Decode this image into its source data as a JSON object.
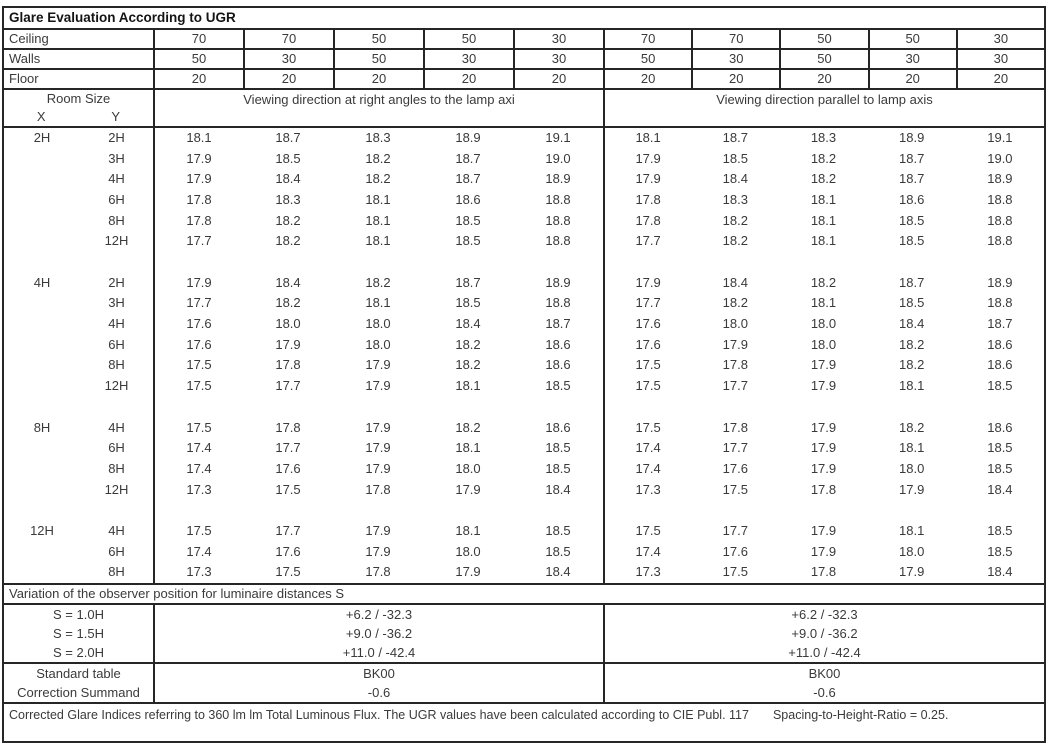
{
  "title": "Glare Evaluation According to UGR",
  "surface": {
    "rows": [
      {
        "label": "Ceiling",
        "values": [
          "70",
          "70",
          "50",
          "50",
          "30",
          "70",
          "70",
          "50",
          "50",
          "30"
        ]
      },
      {
        "label": "Walls",
        "values": [
          "50",
          "30",
          "50",
          "30",
          "30",
          "50",
          "30",
          "50",
          "30",
          "30"
        ]
      },
      {
        "label": "Floor",
        "values": [
          "20",
          "20",
          "20",
          "20",
          "20",
          "20",
          "20",
          "20",
          "20",
          "20"
        ]
      }
    ]
  },
  "header": {
    "room_size": "Room Size",
    "x_label": "X",
    "y_label": "Y",
    "left_direction": "Viewing direction at right angles to the lamp axi",
    "right_direction": "Viewing direction parallel to lamp axis"
  },
  "body": {
    "rows": [
      {
        "x": "2H",
        "y": "2H",
        "left": [
          "18.1",
          "18.7",
          "18.3",
          "18.9",
          "19.1"
        ],
        "right": [
          "18.1",
          "18.7",
          "18.3",
          "18.9",
          "19.1"
        ]
      },
      {
        "x": "",
        "y": "3H",
        "left": [
          "17.9",
          "18.5",
          "18.2",
          "18.7",
          "19.0"
        ],
        "right": [
          "17.9",
          "18.5",
          "18.2",
          "18.7",
          "19.0"
        ]
      },
      {
        "x": "",
        "y": "4H",
        "left": [
          "17.9",
          "18.4",
          "18.2",
          "18.7",
          "18.9"
        ],
        "right": [
          "17.9",
          "18.4",
          "18.2",
          "18.7",
          "18.9"
        ]
      },
      {
        "x": "",
        "y": "6H",
        "left": [
          "17.8",
          "18.3",
          "18.1",
          "18.6",
          "18.8"
        ],
        "right": [
          "17.8",
          "18.3",
          "18.1",
          "18.6",
          "18.8"
        ]
      },
      {
        "x": "",
        "y": "8H",
        "left": [
          "17.8",
          "18.2",
          "18.1",
          "18.5",
          "18.8"
        ],
        "right": [
          "17.8",
          "18.2",
          "18.1",
          "18.5",
          "18.8"
        ]
      },
      {
        "x": "",
        "y": "12H",
        "left": [
          "17.7",
          "18.2",
          "18.1",
          "18.5",
          "18.8"
        ],
        "right": [
          "17.7",
          "18.2",
          "18.1",
          "18.5",
          "18.8"
        ]
      },
      {
        "spacer": true
      },
      {
        "x": "4H",
        "y": "2H",
        "left": [
          "17.9",
          "18.4",
          "18.2",
          "18.7",
          "18.9"
        ],
        "right": [
          "17.9",
          "18.4",
          "18.2",
          "18.7",
          "18.9"
        ]
      },
      {
        "x": "",
        "y": "3H",
        "left": [
          "17.7",
          "18.2",
          "18.1",
          "18.5",
          "18.8"
        ],
        "right": [
          "17.7",
          "18.2",
          "18.1",
          "18.5",
          "18.8"
        ]
      },
      {
        "x": "",
        "y": "4H",
        "left": [
          "17.6",
          "18.0",
          "18.0",
          "18.4",
          "18.7"
        ],
        "right": [
          "17.6",
          "18.0",
          "18.0",
          "18.4",
          "18.7"
        ]
      },
      {
        "x": "",
        "y": "6H",
        "left": [
          "17.6",
          "17.9",
          "18.0",
          "18.2",
          "18.6"
        ],
        "right": [
          "17.6",
          "17.9",
          "18.0",
          "18.2",
          "18.6"
        ]
      },
      {
        "x": "",
        "y": "8H",
        "left": [
          "17.5",
          "17.8",
          "17.9",
          "18.2",
          "18.6"
        ],
        "right": [
          "17.5",
          "17.8",
          "17.9",
          "18.2",
          "18.6"
        ]
      },
      {
        "x": "",
        "y": "12H",
        "left": [
          "17.5",
          "17.7",
          "17.9",
          "18.1",
          "18.5"
        ],
        "right": [
          "17.5",
          "17.7",
          "17.9",
          "18.1",
          "18.5"
        ]
      },
      {
        "spacer": true
      },
      {
        "x": "8H",
        "y": "4H",
        "left": [
          "17.5",
          "17.8",
          "17.9",
          "18.2",
          "18.6"
        ],
        "right": [
          "17.5",
          "17.8",
          "17.9",
          "18.2",
          "18.6"
        ]
      },
      {
        "x": "",
        "y": "6H",
        "left": [
          "17.4",
          "17.7",
          "17.9",
          "18.1",
          "18.5"
        ],
        "right": [
          "17.4",
          "17.7",
          "17.9",
          "18.1",
          "18.5"
        ]
      },
      {
        "x": "",
        "y": "8H",
        "left": [
          "17.4",
          "17.6",
          "17.9",
          "18.0",
          "18.5"
        ],
        "right": [
          "17.4",
          "17.6",
          "17.9",
          "18.0",
          "18.5"
        ]
      },
      {
        "x": "",
        "y": "12H",
        "left": [
          "17.3",
          "17.5",
          "17.8",
          "17.9",
          "18.4"
        ],
        "right": [
          "17.3",
          "17.5",
          "17.8",
          "17.9",
          "18.4"
        ]
      },
      {
        "spacer": true
      },
      {
        "x": "12H",
        "y": "4H",
        "left": [
          "17.5",
          "17.7",
          "17.9",
          "18.1",
          "18.5"
        ],
        "right": [
          "17.5",
          "17.7",
          "17.9",
          "18.1",
          "18.5"
        ]
      },
      {
        "x": "",
        "y": "6H",
        "left": [
          "17.4",
          "17.6",
          "17.9",
          "18.0",
          "18.5"
        ],
        "right": [
          "17.4",
          "17.6",
          "17.9",
          "18.0",
          "18.5"
        ]
      },
      {
        "x": "",
        "y": "8H",
        "left": [
          "17.3",
          "17.5",
          "17.8",
          "17.9",
          "18.4"
        ],
        "right": [
          "17.3",
          "17.5",
          "17.8",
          "17.9",
          "18.4"
        ]
      }
    ]
  },
  "variation": {
    "title": "Variation of the observer position for luminaire distances S",
    "rows": [
      {
        "label": "S = 1.0H",
        "left": "+6.2 / -32.3",
        "right": "+6.2 / -32.3"
      },
      {
        "label": "S = 1.5H",
        "left": "+9.0 / -36.2",
        "right": "+9.0 / -36.2"
      },
      {
        "label": "S = 2.0H",
        "left": "+11.0 / -42.4",
        "right": "+11.0 / -42.4"
      }
    ]
  },
  "summary": {
    "rows": [
      {
        "label": "Standard table",
        "left": "BK00",
        "right": "BK00"
      },
      {
        "label": "Correction Summand",
        "left": "-0.6",
        "right": "-0.6"
      }
    ]
  },
  "footer": {
    "text": "Corrected Glare Indices referring to 360 lm lm Total Luminous Flux. The UGR values have been calculated according to CIE Publ. 117",
    "ratio": "Spacing-to-Height-Ratio = 0.25."
  }
}
